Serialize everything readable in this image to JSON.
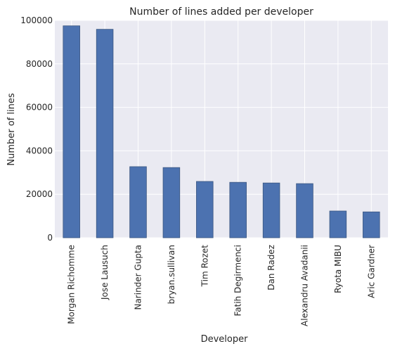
{
  "chart_data": {
    "type": "bar",
    "title": "Number of lines added per developer",
    "xlabel": "Developer",
    "ylabel": "Number of lines",
    "categories": [
      "Morgan Richomme",
      "Jose Lausuch",
      "Narinder Gupta",
      "bryan.sullivan",
      "Tim Rozet",
      "Fatih Degirmenci",
      "Dan Radez",
      "Alexandru Avadanii",
      "Ryota MIBU",
      "Aric Gardner"
    ],
    "values": [
      97500,
      95900,
      32700,
      32300,
      25900,
      25500,
      25200,
      24900,
      12300,
      11900
    ],
    "ylim": [
      0,
      100000
    ],
    "yticks": [
      0,
      20000,
      40000,
      60000,
      80000,
      100000
    ],
    "ytick_labels": [
      "0",
      "20000",
      "40000",
      "60000",
      "80000",
      "100000"
    ],
    "grid": true,
    "colors": {
      "bar": "#4c72b0",
      "bar_edge": "#3a5680",
      "background": "#eaeaf2",
      "grid": "#ffffff"
    }
  }
}
